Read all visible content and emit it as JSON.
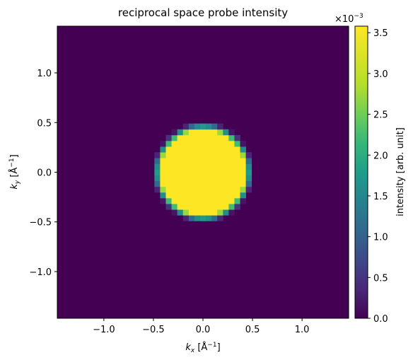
{
  "chart_data": {
    "type": "heatmap",
    "title": "reciprocal space probe intensity",
    "xlabel": "k",
    "xlabel_sub": "x",
    "xlabel_unit": " [Å",
    "xlabel_unit_sup": "−1",
    "xlabel_unit_end": "]",
    "ylabel": "k",
    "ylabel_sub": "y",
    "ylabel_unit": " [Å",
    "ylabel_unit_sup": "−1",
    "ylabel_unit_end": "]",
    "xlim": [
      -1.47,
      1.47
    ],
    "ylim": [
      -1.47,
      1.47
    ],
    "x_ticks": [
      -1.0,
      -0.5,
      0.0,
      0.5,
      1.0
    ],
    "x_tick_labels": [
      "−1.0",
      "−0.5",
      "0.0",
      "0.5",
      "1.0"
    ],
    "y_ticks": [
      -1.0,
      -0.5,
      0.0,
      0.5,
      1.0
    ],
    "y_tick_labels": [
      "−1.0",
      "−0.5",
      "0.0",
      "0.5",
      "1.0"
    ],
    "grid_cells": 51,
    "aperture_radius": 0.47,
    "edge_width": 0.05,
    "value_max": 0.00358,
    "colormap": "viridis",
    "colorbar": {
      "label": "intensity [arb. unit]",
      "offset_text": "×10",
      "offset_exp": "−3",
      "vmin": 0,
      "vmax": 3.58,
      "ticks": [
        0.0,
        0.5,
        1.0,
        1.5,
        2.0,
        2.5,
        3.0,
        3.5
      ],
      "tick_labels": [
        "0.0",
        "0.5",
        "1.0",
        "1.5",
        "2.0",
        "2.5",
        "3.0",
        "3.5"
      ]
    },
    "colors": {
      "background": "#440154",
      "disk": "#fde725"
    }
  }
}
